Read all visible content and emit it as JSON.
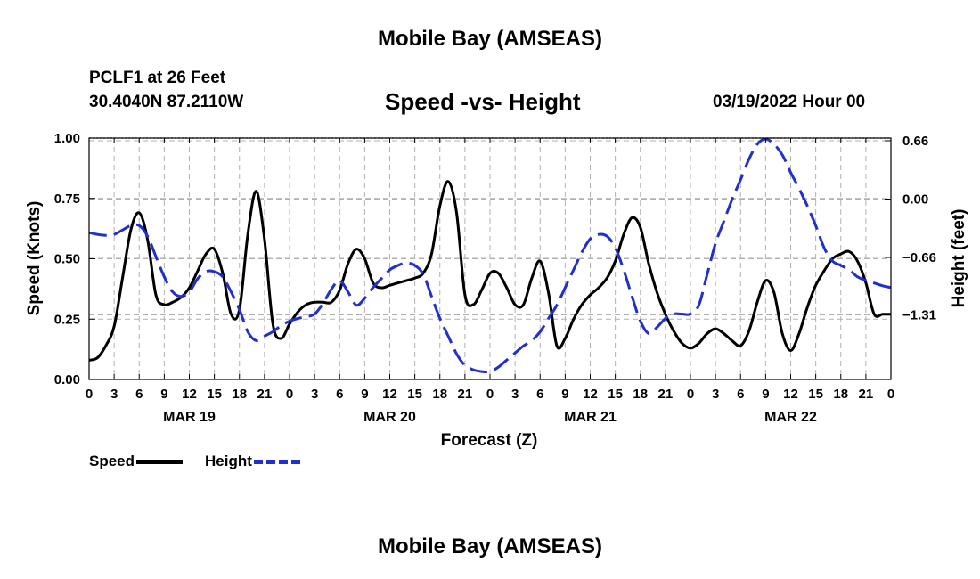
{
  "header": {
    "title": "Mobile Bay (AMSEAS)",
    "station": "PCLF1 at 26 Feet",
    "coords": "30.4040N  87.2110W",
    "chart_title": "Speed -vs- Height",
    "run_time": "03/19/2022 Hour 00"
  },
  "footer": {
    "title": "Mobile Bay (AMSEAS)"
  },
  "legend": {
    "speed_label": "Speed",
    "height_label": "Height"
  },
  "colors": {
    "speed": "#000000",
    "height": "#1f2fd0",
    "grid": "#b0b0b0"
  },
  "chart_data": {
    "type": "line",
    "title": "Speed -vs- Height",
    "xlabel": "Forecast (Z)",
    "ylabel": "Speed (Knots)",
    "y2label": "Height (feet)",
    "xlim": [
      0,
      96
    ],
    "ylim": [
      0,
      1.0
    ],
    "y2lim": [
      -2.04,
      0.69
    ],
    "x_ticks": [
      0,
      3,
      6,
      9,
      12,
      15,
      18,
      21,
      24,
      27,
      30,
      33,
      36,
      39,
      42,
      45,
      48,
      51,
      54,
      57,
      60,
      63,
      66,
      69,
      72,
      75,
      78,
      81,
      84,
      87,
      90,
      93,
      96
    ],
    "x_tick_labels": [
      "0",
      "3",
      "6",
      "9",
      "12",
      "15",
      "18",
      "21",
      "0",
      "3",
      "6",
      "9",
      "12",
      "15",
      "18",
      "21",
      "0",
      "3",
      "6",
      "9",
      "12",
      "15",
      "18",
      "21",
      "0",
      "3",
      "6",
      "9",
      "12",
      "15",
      "18",
      "21",
      "0"
    ],
    "day_labels": [
      {
        "x": 12,
        "label": "MAR 19"
      },
      {
        "x": 36,
        "label": "MAR 20"
      },
      {
        "x": 60,
        "label": "MAR 21"
      },
      {
        "x": 84,
        "label": "MAR 22"
      }
    ],
    "y_ticks": [
      0.0,
      0.25,
      0.5,
      0.75,
      1.0
    ],
    "y_tick_labels": [
      "0.00",
      "0.25",
      "0.50",
      "0.75",
      "1.00"
    ],
    "y2_ticks": [
      0.66,
      0.0,
      -0.66,
      -1.31
    ],
    "y2_tick_labels": [
      "0.66",
      "0.00",
      "−0.66",
      "−1.31"
    ],
    "grid": true,
    "series": [
      {
        "name": "Speed",
        "axis": "left",
        "style": "solid",
        "x": [
          0,
          1,
          2,
          3,
          4,
          5,
          6,
          7,
          8,
          9,
          10,
          11,
          12,
          13,
          14,
          15,
          16,
          17,
          18,
          19,
          20,
          21,
          22,
          23,
          24,
          25,
          26,
          27,
          28,
          29,
          30,
          31,
          32,
          33,
          34,
          35,
          36,
          37,
          38,
          39,
          40,
          41,
          42,
          43,
          44,
          45,
          46,
          47,
          48,
          49,
          50,
          51,
          52,
          53,
          54,
          55,
          56,
          57,
          58,
          59,
          60,
          61,
          62,
          63,
          64,
          65,
          66,
          67,
          68,
          69,
          70,
          71,
          72,
          73,
          74,
          75,
          76,
          77,
          78,
          79,
          80,
          81,
          82,
          83,
          84,
          85,
          86,
          87,
          88,
          89,
          90,
          91,
          92,
          93,
          94,
          95,
          96
        ],
        "values": [
          0.08,
          0.09,
          0.14,
          0.22,
          0.42,
          0.62,
          0.69,
          0.58,
          0.35,
          0.31,
          0.32,
          0.34,
          0.38,
          0.45,
          0.52,
          0.54,
          0.44,
          0.27,
          0.29,
          0.6,
          0.78,
          0.58,
          0.23,
          0.17,
          0.23,
          0.28,
          0.31,
          0.32,
          0.32,
          0.32,
          0.37,
          0.48,
          0.54,
          0.5,
          0.4,
          0.38,
          0.39,
          0.4,
          0.41,
          0.42,
          0.44,
          0.52,
          0.72,
          0.82,
          0.69,
          0.35,
          0.31,
          0.37,
          0.44,
          0.44,
          0.38,
          0.31,
          0.31,
          0.42,
          0.49,
          0.36,
          0.14,
          0.17,
          0.25,
          0.31,
          0.35,
          0.38,
          0.42,
          0.49,
          0.6,
          0.67,
          0.63,
          0.48,
          0.36,
          0.27,
          0.2,
          0.15,
          0.13,
          0.15,
          0.19,
          0.21,
          0.19,
          0.16,
          0.14,
          0.2,
          0.32,
          0.41,
          0.36,
          0.19,
          0.12,
          0.19,
          0.3,
          0.39,
          0.45,
          0.5,
          0.52,
          0.53,
          0.49,
          0.4,
          0.27,
          0.27,
          0.27
        ]
      },
      {
        "name": "Height",
        "axis": "right",
        "style": "dashed",
        "x": [
          0,
          1,
          2,
          3,
          4,
          5,
          6,
          7,
          8,
          9,
          10,
          11,
          12,
          13,
          14,
          15,
          16,
          17,
          18,
          19,
          20,
          21,
          22,
          23,
          24,
          25,
          26,
          27,
          28,
          29,
          30,
          31,
          32,
          33,
          34,
          35,
          36,
          37,
          38,
          39,
          40,
          41,
          42,
          43,
          44,
          45,
          46,
          47,
          48,
          49,
          50,
          51,
          52,
          53,
          54,
          55,
          56,
          57,
          58,
          59,
          60,
          61,
          62,
          63,
          64,
          65,
          66,
          67,
          68,
          69,
          70,
          71,
          72,
          73,
          74,
          75,
          76,
          77,
          78,
          79,
          80,
          81,
          82,
          83,
          84,
          85,
          86,
          87,
          88,
          89,
          90,
          91,
          92,
          93,
          94,
          95,
          96
        ],
        "values": [
          -0.38,
          -0.4,
          -0.41,
          -0.4,
          -0.35,
          -0.3,
          -0.3,
          -0.42,
          -0.65,
          -0.88,
          -1.05,
          -1.1,
          -1.05,
          -0.9,
          -0.82,
          -0.82,
          -0.88,
          -1.05,
          -1.25,
          -1.5,
          -1.6,
          -1.55,
          -1.5,
          -1.43,
          -1.38,
          -1.35,
          -1.33,
          -1.3,
          -1.18,
          -1.02,
          -0.92,
          -1.05,
          -1.2,
          -1.12,
          -1.0,
          -0.9,
          -0.8,
          -0.75,
          -0.72,
          -0.75,
          -0.85,
          -1.1,
          -1.35,
          -1.55,
          -1.75,
          -1.88,
          -1.93,
          -1.95,
          -1.95,
          -1.9,
          -1.82,
          -1.74,
          -1.66,
          -1.6,
          -1.5,
          -1.35,
          -1.2,
          -1.0,
          -0.8,
          -0.6,
          -0.45,
          -0.4,
          -0.42,
          -0.55,
          -0.8,
          -1.1,
          -1.38,
          -1.52,
          -1.45,
          -1.35,
          -1.3,
          -1.3,
          -1.3,
          -1.2,
          -0.85,
          -0.5,
          -0.25,
          0.0,
          0.22,
          0.45,
          0.62,
          0.68,
          0.62,
          0.5,
          0.3,
          0.12,
          -0.08,
          -0.3,
          -0.55,
          -0.7,
          -0.75,
          -0.8,
          -0.88,
          -0.92,
          -0.95,
          -0.98,
          -1.0
        ]
      }
    ]
  }
}
